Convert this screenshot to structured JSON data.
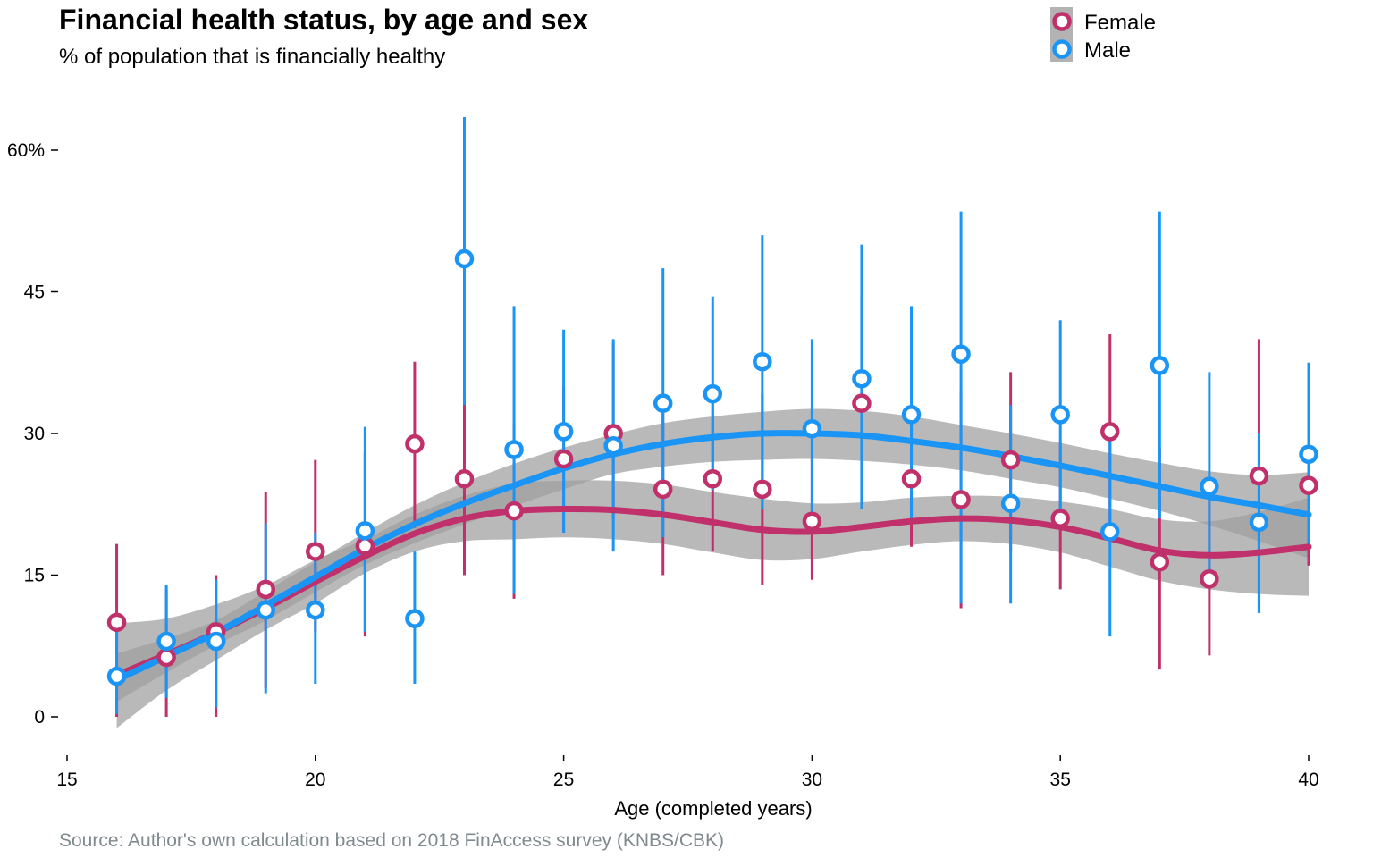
{
  "chart_data": {
    "type": "scatter",
    "title": "Financial health status, by age and sex",
    "subtitle": "% of population that is financially healthy",
    "xlabel": "Age (completed years)",
    "ylabel": "",
    "caption": "Source: Author's own calculation based on 2018 FinAccess survey (KNBS/CBK)",
    "xlim": [
      15,
      40
    ],
    "ylim": [
      0,
      60
    ],
    "x_ticks": [
      15,
      20,
      25,
      30,
      35,
      40
    ],
    "x_tick_labels": [
      "15",
      "20",
      "25",
      "30",
      "35",
      "40"
    ],
    "y_ticks": [
      0,
      15,
      30,
      45,
      60
    ],
    "y_tick_labels": [
      "0",
      "15",
      "30",
      "45",
      "60%"
    ],
    "grid": false,
    "legend_position": "top-right",
    "series": [
      {
        "name": "Female",
        "color": "#c0306a",
        "x": [
          16,
          17,
          18,
          19,
          20,
          21,
          22,
          23,
          24,
          25,
          26,
          27,
          28,
          29,
          30,
          31,
          32,
          33,
          34,
          35,
          36,
          37,
          38,
          39,
          40
        ],
        "y": [
          10.0,
          6.3,
          9.0,
          13.5,
          17.5,
          18.1,
          28.9,
          25.2,
          21.8,
          27.3,
          30.0,
          24.1,
          25.2,
          24.1,
          20.7,
          33.2,
          25.2,
          23.0,
          27.2,
          21.0,
          30.2,
          16.4,
          14.6,
          25.5,
          24.5
        ],
        "y_low": [
          0,
          0,
          0,
          3,
          9,
          8.5,
          20,
          15,
          12.5,
          19.5,
          21,
          15,
          17.5,
          14,
          14.5,
          22,
          18,
          11.5,
          17.5,
          13.5,
          20,
          5,
          6.5,
          11,
          16
        ],
        "y_high": [
          18.3,
          13.5,
          15,
          23.8,
          27.2,
          28,
          37.6,
          34,
          31,
          35,
          39.5,
          33,
          34.5,
          34.2,
          27.5,
          44.5,
          32.5,
          34.5,
          36.5,
          29,
          40.5,
          28.5,
          23,
          40,
          33
        ],
        "smooth": [
          [
            16,
            4.4
          ],
          [
            17,
            6.6
          ],
          [
            18,
            8.9
          ],
          [
            19,
            11.5
          ],
          [
            20,
            14.3
          ],
          [
            21,
            17.0
          ],
          [
            22,
            19.4
          ],
          [
            23,
            21.0
          ],
          [
            24,
            21.8
          ],
          [
            25,
            22.0
          ],
          [
            26,
            21.9
          ],
          [
            27,
            21.4
          ],
          [
            28,
            20.6
          ],
          [
            29,
            19.8
          ],
          [
            30,
            19.6
          ],
          [
            31,
            20.1
          ],
          [
            32,
            20.7
          ],
          [
            33,
            21.0
          ],
          [
            34,
            20.8
          ],
          [
            35,
            20.1
          ],
          [
            36,
            18.9
          ],
          [
            37,
            17.6
          ],
          [
            38,
            17.1
          ],
          [
            39,
            17.4
          ],
          [
            40,
            18.0
          ]
        ],
        "band_low": [
          -1.2,
          2.8,
          6.0,
          9.2,
          12.0,
          15.2,
          17.5,
          18.6,
          18.8,
          19.0,
          18.8,
          18.3,
          17.4,
          16.6,
          16.7,
          17.5,
          18.2,
          18.6,
          18.3,
          17.4,
          15.9,
          14.4,
          13.5,
          13.0,
          12.8
        ],
        "band_high": [
          9.9,
          10.4,
          11.9,
          13.9,
          16.6,
          18.8,
          21.4,
          23.4,
          24.7,
          25.0,
          25.0,
          24.6,
          23.8,
          23.1,
          22.6,
          22.7,
          23.2,
          23.4,
          23.3,
          22.8,
          22.0,
          20.9,
          20.7,
          21.7,
          23.2
        ]
      },
      {
        "name": "Male",
        "color": "#1b95f5",
        "x": [
          16,
          17,
          18,
          19,
          20,
          21,
          22,
          23,
          24,
          25,
          26,
          27,
          28,
          29,
          30,
          31,
          32,
          33,
          34,
          35,
          36,
          37,
          38,
          39,
          40
        ],
        "y": [
          4.3,
          8.0,
          8.0,
          11.3,
          11.3,
          19.7,
          10.4,
          48.5,
          28.3,
          30.2,
          28.7,
          33.2,
          34.2,
          37.6,
          30.5,
          35.8,
          32.0,
          38.4,
          22.6,
          32.0,
          19.6,
          37.2,
          24.4,
          20.6,
          27.8
        ],
        "y_low": [
          0.3,
          2,
          1,
          2.5,
          3.5,
          9,
          3.5,
          33,
          13,
          19.5,
          17.5,
          19,
          24,
          22,
          21,
          22,
          21,
          12,
          12,
          22,
          8.5,
          21,
          14,
          11,
          18
        ],
        "y_high": [
          9,
          14,
          14.5,
          20.5,
          19.5,
          30.7,
          17.5,
          63.5,
          43.5,
          41,
          40,
          47.5,
          44.5,
          51,
          40,
          50,
          43.5,
          53.5,
          33,
          42,
          30,
          53.5,
          36.5,
          30,
          37.5
        ],
        "smooth": [
          [
            16,
            3.9
          ],
          [
            17,
            6.4
          ],
          [
            18,
            8.9
          ],
          [
            19,
            11.8
          ],
          [
            20,
            14.8
          ],
          [
            21,
            17.8
          ],
          [
            22,
            20.4
          ],
          [
            23,
            22.6
          ],
          [
            24,
            24.5
          ],
          [
            25,
            26.3
          ],
          [
            26,
            27.8
          ],
          [
            27,
            28.9
          ],
          [
            28,
            29.6
          ],
          [
            29,
            30.0
          ],
          [
            30,
            30.0
          ],
          [
            31,
            29.8
          ],
          [
            32,
            29.2
          ],
          [
            33,
            28.5
          ],
          [
            34,
            27.6
          ],
          [
            35,
            26.6
          ],
          [
            36,
            25.5
          ],
          [
            37,
            24.4
          ],
          [
            38,
            23.3
          ],
          [
            39,
            22.4
          ],
          [
            40,
            21.4
          ]
        ],
        "band_low": [
          1.6,
          4.7,
          7.6,
          10.2,
          13.2,
          16.1,
          18.4,
          20.4,
          22.3,
          24.1,
          25.7,
          26.5,
          27.0,
          27.2,
          27.3,
          27.1,
          26.7,
          26.1,
          25.2,
          24.3,
          23.1,
          21.8,
          20.3,
          18.6,
          16.8
        ],
        "band_high": [
          6.7,
          8.3,
          10.2,
          13.3,
          16.4,
          19.5,
          22.4,
          24.8,
          26.8,
          28.5,
          29.9,
          31.1,
          31.8,
          32.3,
          32.6,
          32.4,
          31.8,
          30.9,
          30.0,
          29.0,
          27.9,
          26.9,
          26.0,
          25.6,
          25.9
        ]
      }
    ]
  },
  "colors": {
    "female": "#c0306a",
    "male": "#1b95f5",
    "band": "#9e9e9e",
    "caption": "#7f8a8e"
  }
}
